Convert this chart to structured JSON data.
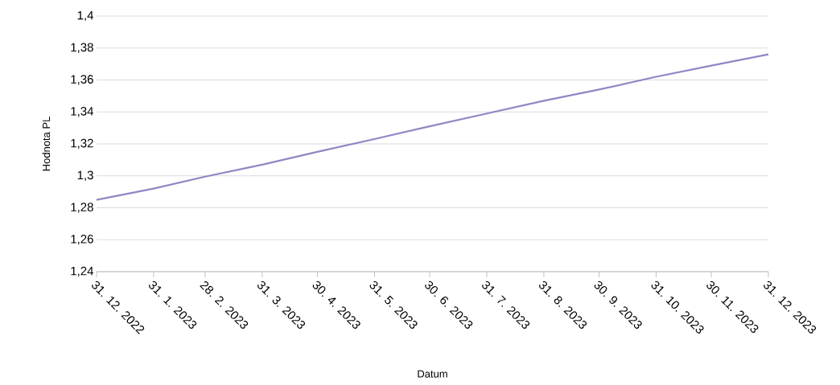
{
  "chart_data": {
    "type": "line",
    "xlabel": "Datum",
    "ylabel": "Hodnota PL",
    "x": [
      "2022-12-31",
      "2023-01-31",
      "2023-02-28",
      "2023-03-31",
      "2023-04-30",
      "2023-05-31",
      "2023-06-30",
      "2023-07-31",
      "2023-08-31",
      "2023-09-30",
      "2023-10-31",
      "2023-11-30",
      "2023-12-31"
    ],
    "series": [
      {
        "color": "#9485c4",
        "values": [
          1.285,
          1.292,
          1.2995,
          1.307,
          1.315,
          1.323,
          1.331,
          1.339,
          1.347,
          1.354,
          1.362,
          1.369,
          1.376
        ]
      }
    ],
    "xlim": [
      "2022-12-31",
      "2023-12-31"
    ],
    "xticks": [
      {
        "value": "2022-12-31",
        "label": "31. 12. 2022"
      },
      {
        "value": "2023-01-31",
        "label": "31. 1. 2023"
      },
      {
        "value": "2023-02-28",
        "label": "28. 2. 2023"
      },
      {
        "value": "2023-03-31",
        "label": "31. 3. 2023"
      },
      {
        "value": "2023-04-30",
        "label": "30. 4. 2023"
      },
      {
        "value": "2023-05-31",
        "label": "31. 5. 2023"
      },
      {
        "value": "2023-06-30",
        "label": "30. 6. 2023"
      },
      {
        "value": "2023-07-31",
        "label": "31. 7. 2023"
      },
      {
        "value": "2023-08-31",
        "label": "31. 8. 2023"
      },
      {
        "value": "2023-09-30",
        "label": "30. 9. 2023"
      },
      {
        "value": "2023-10-31",
        "label": "31. 10. 2023"
      },
      {
        "value": "2023-11-30",
        "label": "30. 11. 2023"
      },
      {
        "value": "2023-12-31",
        "label": "31. 12. 2023"
      }
    ],
    "ylim": [
      1.24,
      1.4
    ],
    "yticks": [
      {
        "value": 1.24,
        "label": "1,24"
      },
      {
        "value": 1.26,
        "label": "1,26"
      },
      {
        "value": 1.28,
        "label": "1,28"
      },
      {
        "value": 1.3,
        "label": "1,3"
      },
      {
        "value": 1.32,
        "label": "1,32"
      },
      {
        "value": 1.34,
        "label": "1,34"
      },
      {
        "value": 1.36,
        "label": "1,36"
      },
      {
        "value": 1.38,
        "label": "1,38"
      },
      {
        "value": 1.4,
        "label": "1,4"
      }
    ],
    "grid": "y"
  }
}
